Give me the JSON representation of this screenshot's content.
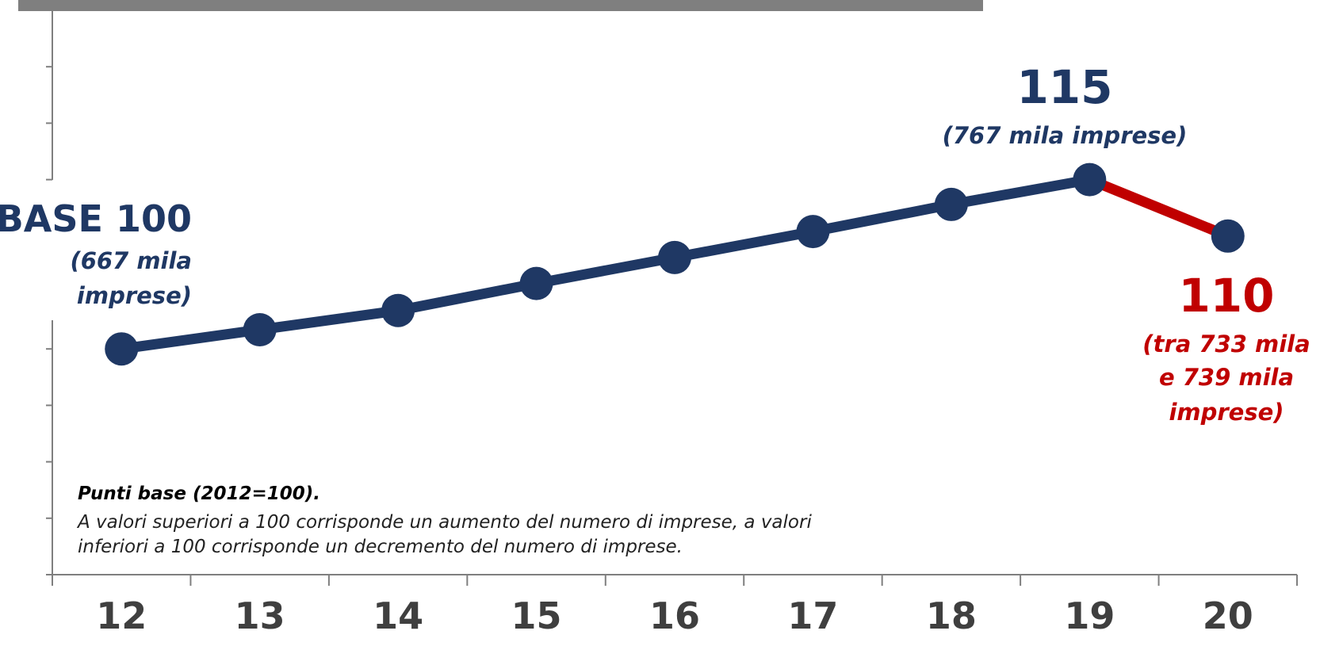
{
  "chart_data": {
    "type": "line",
    "categories": [
      "12",
      "13",
      "14",
      "15",
      "16",
      "17",
      "18",
      "19",
      "20"
    ],
    "series": [
      {
        "color": "#1f3864",
        "highlight_color": "#c00000",
        "values": [
          100,
          101.7,
          103.4,
          105.8,
          108.1,
          110.4,
          112.8,
          115,
          110
        ]
      }
    ],
    "ylim": [
      80,
      130
    ],
    "yticks": [
      80,
      85,
      90,
      95,
      100,
      115,
      120,
      125
    ],
    "annotations": {
      "base": {
        "value": "BASE 100",
        "note": [
          "(667 mila",
          "imprese)"
        ]
      },
      "peak": {
        "value": "115",
        "note": [
          "(767 mila imprese)"
        ]
      },
      "last": {
        "value": "110",
        "note": [
          "(tra 733 mila",
          "e 739 mila",
          "imprese)"
        ]
      }
    },
    "note": {
      "title": "Punti base (2012=100).",
      "lines": [
        "A valori superiori a 100 corrisponde un aumento del numero di imprese, a valori",
        "inferiori a 100 corrisponde un decremento del numero di imprese."
      ]
    }
  }
}
